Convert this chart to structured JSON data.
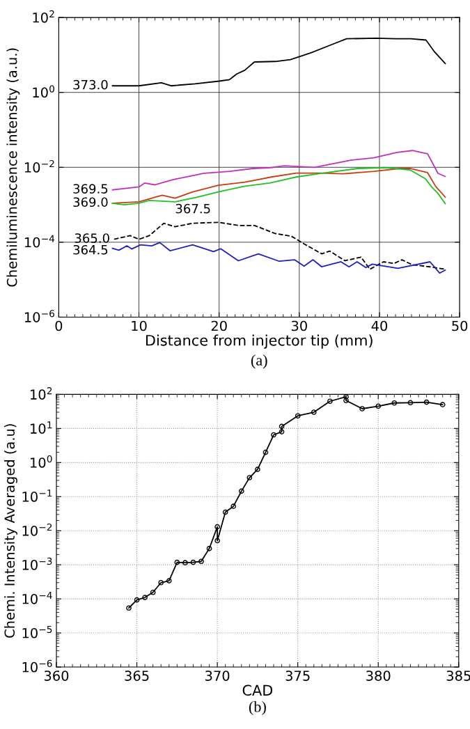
{
  "chart_data": [
    {
      "type": "line",
      "xlabel": "Distance from injector tip (mm)",
      "ylabel": "Chemiluminescence intensity (a.u.)",
      "log": "y",
      "grid": true,
      "marker": "none",
      "line_style": "solid",
      "xlim": [
        0,
        50
      ],
      "xticks": [
        0,
        10,
        20,
        30,
        40,
        50
      ],
      "ylim": [
        1e-06,
        100
      ],
      "yticks": [
        {
          "value": 1e-06,
          "label": "10$^{−6}$"
        },
        {
          "value": 0.0001,
          "label": "10$^{−4}$"
        },
        {
          "value": 0.01,
          "label": "10$^{−2}$"
        },
        {
          "value": 1,
          "label": "10$^{0}$"
        },
        {
          "value": 100,
          "label": "10$^{2}$"
        }
      ],
      "annotations": [
        "(a)"
      ],
      "series": [
        {
          "name": "373.0",
          "color": "#000000",
          "x": [
            6.7,
            10,
            12.8,
            14,
            17,
            20,
            21.3,
            22.2,
            23.2,
            24.4,
            27,
            28.9,
            31.5,
            33.5,
            35.9,
            39.6,
            42,
            43.9,
            45.8,
            46.8,
            48.2
          ],
          "values": [
            1.5,
            1.5,
            1.8,
            1.5,
            1.7,
            2.0,
            2.2,
            3.1,
            3.9,
            6.5,
            6.7,
            7.5,
            11.5,
            17,
            27,
            28,
            27,
            27,
            25,
            12.6,
            5.9
          ]
        },
        {
          "name": "369.5",
          "color": "#c030c0",
          "x": [
            6.7,
            10,
            10.7,
            12,
            14.3,
            18.1,
            21.3,
            24.2,
            26.5,
            28.1,
            31.9,
            36.4,
            39.3,
            42.2,
            44.1,
            46,
            47.3,
            48.2
          ],
          "values": [
            0.0025,
            0.003,
            0.0038,
            0.0034,
            0.0047,
            0.0069,
            0.0078,
            0.0093,
            0.0098,
            0.011,
            0.01,
            0.0155,
            0.018,
            0.025,
            0.028,
            0.023,
            0.0069,
            0.0057
          ]
        },
        {
          "name": "369.0",
          "color": "#c83c14",
          "x": [
            6.7,
            10,
            12.9,
            14.5,
            16.7,
            19.9,
            23.2,
            26.5,
            29.6,
            32.8,
            35.4,
            39.3,
            42.5,
            43.8,
            46,
            47,
            48.2
          ],
          "values": [
            0.0011,
            0.0012,
            0.0018,
            0.0015,
            0.0022,
            0.0033,
            0.004,
            0.0055,
            0.007,
            0.007,
            0.0067,
            0.0078,
            0.0093,
            0.0093,
            0.0072,
            0.0031,
            0.0016
          ]
        },
        {
          "name": "367.5",
          "color": "#22c022",
          "x": [
            6.7,
            8.2,
            10,
            11.3,
            14.5,
            17.3,
            19.9,
            23.1,
            26.3,
            29.6,
            32.8,
            37.3,
            40.8,
            43.8,
            45.7,
            46.5,
            47.3,
            48.2
          ],
          "values": [
            0.0011,
            0.001,
            0.0011,
            0.0013,
            0.0012,
            0.0016,
            0.0022,
            0.0031,
            0.0038,
            0.0055,
            0.0069,
            0.0093,
            0.0098,
            0.0085,
            0.005,
            0.003,
            0.002,
            0.00107
          ]
        },
        {
          "name": "365.0",
          "color": "#000000",
          "line_style": "dashed",
          "x": [
            6.9,
            8.9,
            10,
            11.3,
            13.1,
            14.5,
            16.7,
            19.9,
            22.4,
            24.4,
            27,
            29,
            30.6,
            32.8,
            33.8,
            35.7,
            37.7,
            38.8,
            40.5,
            41.8,
            42.8,
            44.1,
            46.3,
            48.2
          ],
          "values": [
            0.00012,
            0.00015,
            0.00012,
            0.00015,
            0.00032,
            0.00026,
            0.00032,
            0.00034,
            0.00028,
            0.00028,
            0.00017,
            0.000145,
            9e-05,
            4.9e-05,
            5.8e-05,
            3.2e-05,
            4e-05,
            1.9e-05,
            3e-05,
            2.7e-05,
            3.4e-05,
            2.5e-05,
            2.2e-05,
            1.9e-05
          ]
        },
        {
          "name": "364.5",
          "color": "#2020c0",
          "x": [
            6.7,
            7.5,
            8.5,
            9.1,
            10.2,
            11.6,
            12.6,
            13.9,
            16.7,
            19.3,
            20.2,
            22.4,
            24.9,
            27.5,
            29.4,
            30.6,
            31.7,
            32.8,
            35.2,
            36.2,
            37.2,
            38.3,
            39.1,
            42.3,
            46.3,
            47.5,
            48.2
          ],
          "values": [
            6.9e-05,
            6.1e-05,
            8e-05,
            6.6e-05,
            8.5e-05,
            8e-05,
            9.8e-05,
            5.9e-05,
            8.5e-05,
            5.6e-05,
            6.7e-05,
            3.2e-05,
            4.9e-05,
            3.1e-05,
            3.4e-05,
            2.3e-05,
            3.4e-05,
            2.2e-05,
            3e-05,
            2.2e-05,
            3e-05,
            2.1e-05,
            2.6e-05,
            2e-05,
            3e-05,
            1.5e-05,
            1.8e-05
          ]
        }
      ]
    },
    {
      "type": "line",
      "xlabel": "CAD",
      "ylabel": "Chemi. Intensity Averaged (a.u)",
      "log": "y",
      "grid": true,
      "marker": "circle",
      "line_style": "solid",
      "xlim": [
        360,
        385
      ],
      "xticks": [
        360,
        365,
        370,
        375,
        380,
        385
      ],
      "ylim": [
        1e-06,
        100
      ],
      "yticks": [
        {
          "value": 1e-06,
          "label": "10$^{−6}$"
        },
        {
          "value": 1e-05,
          "label": "10$^{−5}$"
        },
        {
          "value": 0.0001,
          "label": "10$^{−4}$"
        },
        {
          "value": 0.001,
          "label": "10$^{−3}$"
        },
        {
          "value": 0.01,
          "label": "10$^{−2}$"
        },
        {
          "value": 0.1,
          "label": "10$^{−1}$"
        },
        {
          "value": 1,
          "label": "10$^{0}$"
        },
        {
          "value": 10,
          "label": "10$^{1}$"
        },
        {
          "value": 100,
          "label": "10$^{2}$"
        }
      ],
      "annotations": [
        "(b)"
      ],
      "series": [
        {
          "color": "#000000",
          "x": [
            364.5,
            365,
            365.5,
            366,
            366.5,
            367,
            367.5,
            368,
            368.5,
            369,
            369.5,
            370,
            370,
            370.5,
            371,
            371.5,
            372,
            372.5,
            373,
            373.5,
            374,
            374,
            375,
            376,
            377,
            378,
            378,
            379,
            380,
            381,
            382,
            383,
            384
          ],
          "values": [
            5.4e-05,
            9.3e-05,
            0.00011,
            0.000155,
            0.0003,
            0.00034,
            0.00118,
            0.00115,
            0.00118,
            0.00126,
            0.003,
            0.013,
            0.0051,
            0.035,
            0.052,
            0.145,
            0.36,
            0.63,
            2.0,
            6.5,
            8.0,
            11.5,
            23.5,
            30,
            63,
            85,
            66,
            38,
            45,
            56,
            57,
            59,
            50
          ]
        }
      ]
    }
  ]
}
